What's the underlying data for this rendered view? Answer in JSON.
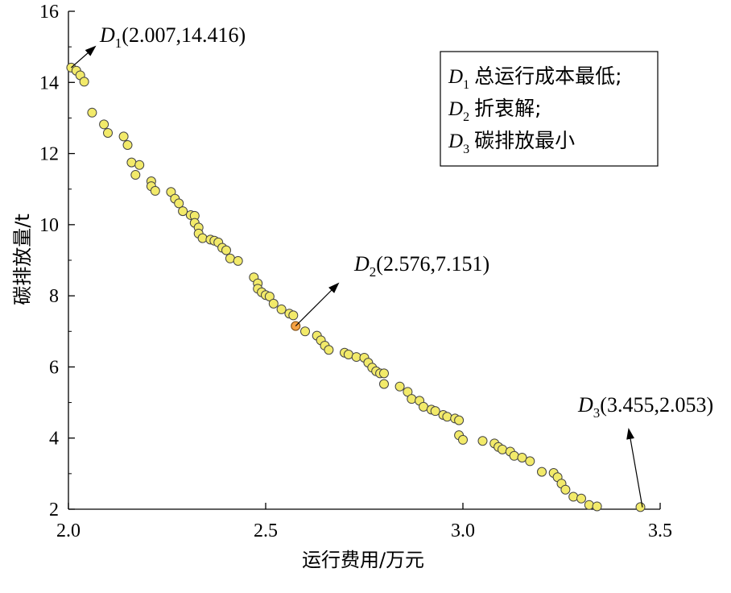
{
  "chart_data": {
    "type": "scatter",
    "xlabel": "运行费用/万元",
    "ylabel": "碳排放量/t",
    "xlim": [
      2.0,
      3.5
    ],
    "ylim": [
      2,
      16
    ],
    "xticks": [
      "2.0",
      "2.5",
      "3.0",
      "3.5"
    ],
    "yticks": [
      "2",
      "4",
      "6",
      "8",
      "10",
      "12",
      "14",
      "16"
    ],
    "grid": false,
    "colors": {
      "point": "#f2ea6a",
      "highlight": "#f5a142",
      "edge": "#444444"
    },
    "series": [
      {
        "x": [
          2.007,
          2.02,
          2.03,
          2.04,
          2.06,
          2.09,
          2.1,
          2.14,
          2.15,
          2.16,
          2.18,
          2.17,
          2.21,
          2.21,
          2.22,
          2.26,
          2.27,
          2.28,
          2.29,
          2.31,
          2.32,
          2.32,
          2.33,
          2.33,
          2.34,
          2.36,
          2.37,
          2.38,
          2.39,
          2.4,
          2.41,
          2.43,
          2.47,
          2.48,
          2.48,
          2.49,
          2.5,
          2.51,
          2.52,
          2.54,
          2.56,
          2.57,
          2.6,
          2.63,
          2.64,
          2.65,
          2.66,
          2.7,
          2.71,
          2.73,
          2.75,
          2.76,
          2.77,
          2.78,
          2.79,
          2.8,
          2.8,
          2.84,
          2.86,
          2.87,
          2.89,
          2.9,
          2.92,
          2.93,
          2.95,
          2.96,
          2.98,
          2.99,
          2.99,
          3.0,
          3.05,
          3.08,
          3.09,
          3.1,
          3.12,
          3.13,
          3.15,
          3.17,
          3.2,
          3.23,
          3.24,
          3.25,
          3.26,
          3.28,
          3.3,
          3.32,
          3.34,
          3.45
        ],
        "y": [
          14.416,
          14.33,
          14.2,
          14.02,
          13.15,
          12.82,
          12.58,
          12.48,
          12.24,
          11.75,
          11.68,
          11.4,
          11.22,
          11.08,
          10.95,
          10.92,
          10.73,
          10.6,
          10.38,
          10.27,
          10.25,
          10.05,
          9.92,
          9.75,
          9.62,
          9.58,
          9.55,
          9.5,
          9.35,
          9.28,
          9.05,
          8.98,
          8.52,
          8.35,
          8.2,
          8.1,
          8.02,
          7.98,
          7.78,
          7.62,
          7.5,
          7.45,
          7.0,
          6.88,
          6.75,
          6.6,
          6.48,
          6.4,
          6.35,
          6.28,
          6.26,
          6.12,
          5.98,
          5.88,
          5.82,
          5.52,
          5.82,
          5.45,
          5.3,
          5.1,
          5.05,
          4.88,
          4.8,
          4.76,
          4.65,
          4.6,
          4.55,
          4.5,
          4.08,
          3.95,
          3.92,
          3.85,
          3.75,
          3.68,
          3.62,
          3.5,
          3.45,
          3.35,
          3.05,
          3.02,
          2.9,
          2.72,
          2.55,
          2.35,
          2.3,
          2.12,
          2.08,
          2.06
        ]
      }
    ],
    "annotations": [
      {
        "sym": "D",
        "sub": "1",
        "coord": "(2.007,14.416)",
        "x": 2.007,
        "y": 14.416
      },
      {
        "sym": "D",
        "sub": "2",
        "coord": "(2.576,7.151)",
        "x": 2.576,
        "y": 7.151
      },
      {
        "sym": "D",
        "sub": "3",
        "coord": "(3.455,2.053)",
        "x": 3.455,
        "y": 2.053
      }
    ],
    "legend": [
      {
        "sym": "D",
        "sub": "1",
        "text": "总运行成本最低;"
      },
      {
        "sym": "D",
        "sub": "2",
        "text": "折衷解;"
      },
      {
        "sym": "D",
        "sub": "3",
        "text": "碳排放最小"
      }
    ]
  }
}
